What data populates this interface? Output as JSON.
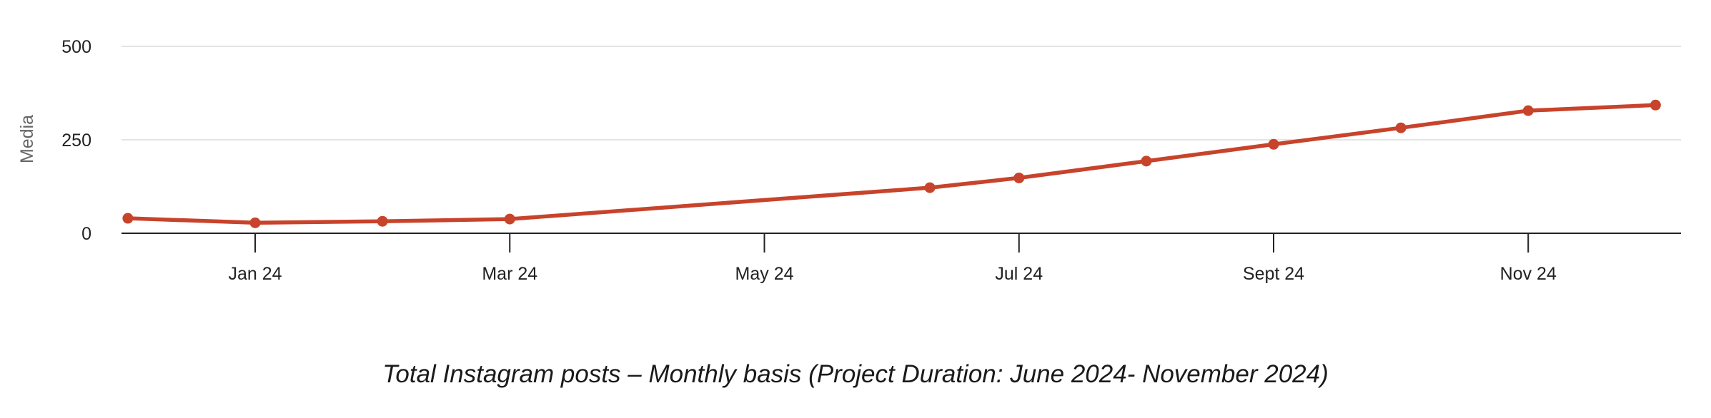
{
  "caption": "Total Instagram posts – Monthly basis (Project Duration: June 2024- November 2024)",
  "chart_data": {
    "type": "line",
    "title": "",
    "xlabel": "",
    "ylabel": "Media",
    "ylim": [
      0,
      500
    ],
    "yticks": [
      0,
      250,
      500
    ],
    "x_range": [
      -1.05,
      11.2
    ],
    "xticks": [
      {
        "x": 0,
        "label": "Jan 24"
      },
      {
        "x": 2,
        "label": "Mar 24"
      },
      {
        "x": 4,
        "label": "May 24"
      },
      {
        "x": 6,
        "label": "Jul 24"
      },
      {
        "x": 8,
        "label": "Sept 24"
      },
      {
        "x": 10,
        "label": "Nov 24"
      }
    ],
    "grid": true,
    "legend": "none",
    "series": [
      {
        "color": "#c8432b",
        "points": [
          {
            "x": -1,
            "y": 40
          },
          {
            "x": 0,
            "y": 28
          },
          {
            "x": 1,
            "y": 32
          },
          {
            "x": 2,
            "y": 38
          },
          {
            "x": 5.3,
            "y": 122
          },
          {
            "x": 6,
            "y": 148
          },
          {
            "x": 7,
            "y": 193
          },
          {
            "x": 8,
            "y": 238
          },
          {
            "x": 9,
            "y": 282
          },
          {
            "x": 10,
            "y": 328
          },
          {
            "x": 11,
            "y": 343
          }
        ]
      }
    ],
    "colors": {
      "line": "#c8432b",
      "grid": "#e4e4e4",
      "axis": "#222222"
    }
  }
}
